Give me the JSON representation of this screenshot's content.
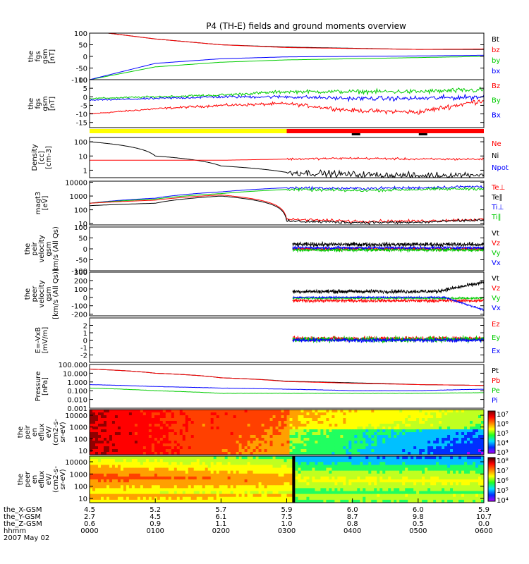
{
  "title": "P4 (TH-E) fields and ground moments overview",
  "bar_colors": {
    "yellow": "#ffff00",
    "red": "#ff0000",
    "black": "#000000"
  },
  "panels": [
    {
      "id": "fgs_gsm",
      "ylabel": [
        "the",
        "fgs",
        "gsm",
        "[nT]"
      ],
      "ticks": [
        "100",
        "50",
        "0",
        "-50",
        "-100"
      ],
      "ylim": [
        -100,
        100
      ],
      "log": false,
      "legend": [
        {
          "t": "Bt",
          "c": "#000000"
        },
        {
          "t": "bz",
          "c": "#ff0000"
        },
        {
          "t": "by",
          "c": "#00cc00"
        },
        {
          "t": "bx",
          "c": "#0000ff"
        }
      ]
    },
    {
      "id": "fgs_gse",
      "ylabel": [
        "the",
        "fgs",
        "gsm",
        "[nT]"
      ],
      "ticks": [
        "10",
        "5",
        "0",
        "-5",
        "-10",
        "-15"
      ],
      "ylim": [
        -18,
        10
      ],
      "log": false,
      "legend": [
        {
          "t": "Bz",
          "c": "#ff0000"
        },
        {
          "t": "By",
          "c": "#00cc00"
        },
        {
          "t": "Bx",
          "c": "#0000ff"
        }
      ]
    },
    {
      "id": "density",
      "ylabel": [
        "Density",
        "[cc]",
        "[cm-3]"
      ],
      "ticks": [
        "100",
        "10",
        "1"
      ],
      "ylim": [
        0.3,
        200
      ],
      "log": true,
      "legend": [
        {
          "t": "Ne",
          "c": "#ff0000"
        },
        {
          "t": "Ni",
          "c": "#000000"
        },
        {
          "t": "Npot",
          "c": "#0000ff"
        }
      ]
    },
    {
      "id": "temp",
      "ylabel": [
        "magt3",
        "[eV]"
      ],
      "ticks": [
        "10000",
        "1000",
        "100",
        "10"
      ],
      "ylim": [
        8,
        12000
      ],
      "log": true,
      "legend": [
        {
          "t": "Te⊥",
          "c": "#ff0000"
        },
        {
          "t": "Te∥",
          "c": "#000000"
        },
        {
          "t": "Ti⊥",
          "c": "#0000ff"
        },
        {
          "t": "Ti∥",
          "c": "#00cc00"
        }
      ]
    },
    {
      "id": "peir_v",
      "ylabel": [
        "the",
        "peir",
        "velocity",
        "gsm",
        "km/s (All Qs)"
      ],
      "ticks": [
        "100",
        "50",
        "0",
        "-50",
        "-100"
      ],
      "ylim": [
        -100,
        100
      ],
      "log": false,
      "legend": [
        {
          "t": "Vt",
          "c": "#000000"
        },
        {
          "t": "Vz",
          "c": "#ff0000"
        },
        {
          "t": "Vy",
          "c": "#00cc00"
        },
        {
          "t": "Vx",
          "c": "#0000ff"
        }
      ]
    },
    {
      "id": "peer_v",
      "ylabel": [
        "the",
        "peer",
        "velocity",
        "gsm",
        "[km/s (All Qs)]"
      ],
      "ticks": [
        "300",
        "200",
        "100",
        "0",
        "-100",
        "-200"
      ],
      "ylim": [
        -220,
        300
      ],
      "log": false,
      "legend": [
        {
          "t": "Vt",
          "c": "#000000"
        },
        {
          "t": "Vz",
          "c": "#ff0000"
        },
        {
          "t": "Vy",
          "c": "#00cc00"
        },
        {
          "t": "Vx",
          "c": "#0000ff"
        }
      ]
    },
    {
      "id": "efield",
      "ylabel": [
        "E=-VxB",
        "[mV/m]"
      ],
      "ticks": [
        "2",
        "1",
        "0",
        "-1",
        "-2"
      ],
      "ylim": [
        -3,
        3
      ],
      "log": false,
      "legend": [
        {
          "t": "Ez",
          "c": "#ff0000"
        },
        {
          "t": "Ey",
          "c": "#00cc00"
        },
        {
          "t": "Ex",
          "c": "#0000ff"
        }
      ]
    },
    {
      "id": "pressure",
      "ylabel": [
        "Pressure",
        "[nPa]"
      ],
      "ticks": [
        "100.000",
        "10.000",
        "1.000",
        "0.100",
        "0.010",
        "0.001"
      ],
      "ylim": [
        0.001,
        100
      ],
      "log": true,
      "legend": [
        {
          "t": "Pt",
          "c": "#000000"
        },
        {
          "t": "Pb",
          "c": "#ff0000"
        },
        {
          "t": "Pe",
          "c": "#00cc00"
        },
        {
          "t": "Pi",
          "c": "#0000ff"
        }
      ]
    },
    {
      "id": "peir_spec",
      "ylabel": [
        "the",
        "peir",
        "en",
        "eflux",
        "eV/",
        "(cm2-s-",
        "sr-eV)"
      ],
      "ticks": [
        "10000",
        "1000",
        "100",
        "10"
      ],
      "log": true,
      "legend": [],
      "cbar": [
        "10⁷",
        "10⁶",
        "10⁵",
        "10⁴",
        "10³"
      ]
    },
    {
      "id": "peer_spec",
      "ylabel": [
        "the",
        "peer",
        "en",
        "eflux",
        "eV/",
        "(cm2-s-",
        "sr-eV)"
      ],
      "ticks": [
        "10000",
        "1000",
        "100",
        "10"
      ],
      "log": true,
      "legend": [],
      "cbar": [
        "10⁸",
        "10⁷",
        "10⁶",
        "10⁵",
        "10⁴"
      ]
    }
  ],
  "xaxis": {
    "rows": [
      {
        "label": "the_X-GSM",
        "vals": [
          "4.5",
          "5.2",
          "5.7",
          "5.9",
          "6.0",
          "6.0",
          "5.9"
        ]
      },
      {
        "label": "the_Y-GSM",
        "vals": [
          "2.7",
          "4.5",
          "6.1",
          "7.5",
          "8.7",
          "9.8",
          "10.7"
        ]
      },
      {
        "label": "the_Z-GSM",
        "vals": [
          "0.6",
          "0.9",
          "1.1",
          "1.0",
          "0.8",
          "0.5",
          "0.0"
        ]
      },
      {
        "label": "hhmm",
        "vals": [
          "0000",
          "0100",
          "0200",
          "0300",
          "0400",
          "0500",
          "0600"
        ]
      }
    ],
    "date": "2007 May 02"
  },
  "chart_data": {
    "type": "line",
    "title": "P4 (TH-E) fields and ground moments overview",
    "x": [
      "0000",
      "0100",
      "0200",
      "0300",
      "0400",
      "0500",
      "0600"
    ],
    "xlabel": "hhmm",
    "series": [
      {
        "panel": "fgs_gsm",
        "name": "Bt",
        "values": [
          110,
          75,
          50,
          40,
          35,
          30,
          30
        ]
      },
      {
        "panel": "fgs_gsm",
        "name": "bz",
        "values": [
          110,
          75,
          50,
          38,
          34,
          30,
          32
        ]
      },
      {
        "panel": "fgs_gsm",
        "name": "by",
        "values": [
          -100,
          -45,
          -25,
          -15,
          -10,
          -5,
          0
        ]
      },
      {
        "panel": "fgs_gsm",
        "name": "bx",
        "values": [
          -100,
          -30,
          -10,
          -2,
          0,
          2,
          5
        ]
      },
      {
        "panel": "fgs_gse",
        "name": "Bz",
        "values": [
          -10,
          -7,
          -5,
          -4,
          -8,
          -9,
          -2
        ]
      },
      {
        "panel": "fgs_gse",
        "name": "By",
        "values": [
          -1,
          0,
          1,
          3,
          3,
          3,
          4
        ]
      },
      {
        "panel": "fgs_gse",
        "name": "Bx",
        "values": [
          -2,
          -1,
          0,
          0,
          -1,
          -1,
          0
        ]
      },
      {
        "panel": "density",
        "name": "Ni",
        "values": [
          100,
          10,
          2,
          0.7,
          0.5,
          0.4,
          0.5
        ]
      },
      {
        "panel": "density",
        "name": "Ne",
        "values": [
          5,
          5,
          5,
          6,
          7,
          6,
          6
        ]
      },
      {
        "panel": "temp",
        "name": "Ti⊥",
        "values": [
          300,
          700,
          2000,
          4000,
          3500,
          4000,
          5000
        ]
      },
      {
        "panel": "temp",
        "name": "Ti∥",
        "values": [
          300,
          600,
          1500,
          3000,
          2500,
          3000,
          3500
        ]
      },
      {
        "panel": "temp",
        "name": "Te⊥",
        "values": [
          300,
          500,
          1200,
          20,
          15,
          15,
          20
        ]
      },
      {
        "panel": "temp",
        "name": "Te∥",
        "values": [
          200,
          300,
          1000,
          15,
          12,
          12,
          18
        ]
      },
      {
        "panel": "pressure",
        "name": "Pt",
        "values": [
          30,
          10,
          3,
          1.2,
          0.8,
          0.5,
          0.4
        ]
      },
      {
        "panel": "pressure",
        "name": "Pb",
        "values": [
          30,
          10,
          3,
          1.1,
          0.7,
          0.5,
          0.4
        ]
      },
      {
        "panel": "pressure",
        "name": "Pe",
        "values": [
          0.2,
          0.1,
          0.05,
          0.05,
          0.05,
          0.05,
          0.06
        ]
      },
      {
        "panel": "pressure",
        "name": "Pi",
        "values": [
          0.5,
          0.3,
          0.2,
          0.15,
          0.1,
          0.1,
          0.15
        ]
      }
    ]
  }
}
